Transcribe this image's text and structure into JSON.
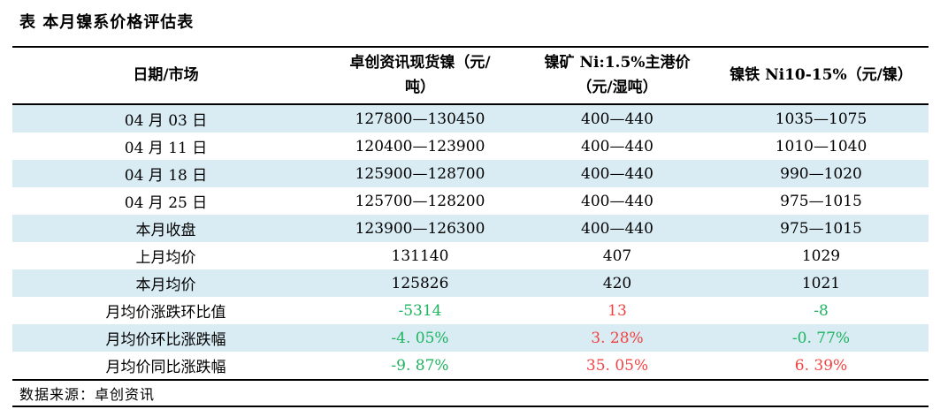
{
  "title": "表  本月镍系价格评估表",
  "colors": {
    "band": "#d9ecf4",
    "green": "#1db45f",
    "red": "#f24242",
    "text": "#000000"
  },
  "table": {
    "columns": [
      {
        "label": "日期/市场"
      },
      {
        "label": "卓创资讯现货镍（元/\n吨）"
      },
      {
        "label": "镍矿 Ni:1.5%主港价\n（元/湿吨）"
      },
      {
        "label": "镍铁 Ni10-15%（元/镍）"
      }
    ],
    "rows": [
      {
        "label": "04 月 03 日",
        "values": [
          "127800—130450",
          "400—440",
          "1035—1075"
        ]
      },
      {
        "label": "04 月 11 日",
        "values": [
          "120400—123900",
          "400—440",
          "1010—1040"
        ]
      },
      {
        "label": "04 月 18 日",
        "values": [
          "125900—128700",
          "400—440",
          "990—1020"
        ]
      },
      {
        "label": "04 月 25 日",
        "values": [
          "125700—128200",
          "400—440",
          "975—1015"
        ]
      },
      {
        "label": "本月收盘",
        "values": [
          "123900—126300",
          "400—440",
          "975—1015"
        ]
      },
      {
        "label": "上月均价",
        "values": [
          "131140",
          "407",
          "1029"
        ]
      },
      {
        "label": "本月均价",
        "values": [
          "125826",
          "420",
          "1021"
        ]
      },
      {
        "label": "月均价涨跌环比值",
        "values": [
          "-5314",
          "13",
          "-8"
        ],
        "value_colors": [
          "green",
          "red",
          "green"
        ]
      },
      {
        "label": "月均价环比涨跌幅",
        "values": [
          "-4. 05%",
          "3. 28%",
          "-0. 77%"
        ],
        "value_colors": [
          "green",
          "red",
          "green"
        ]
      },
      {
        "label": "月均价同比涨跌幅",
        "values": [
          "-9. 87%",
          "35. 05%",
          "6. 39%"
        ],
        "value_colors": [
          "green",
          "red",
          "red"
        ]
      }
    ]
  },
  "footer": {
    "source": "数据来源：卓创资讯"
  }
}
